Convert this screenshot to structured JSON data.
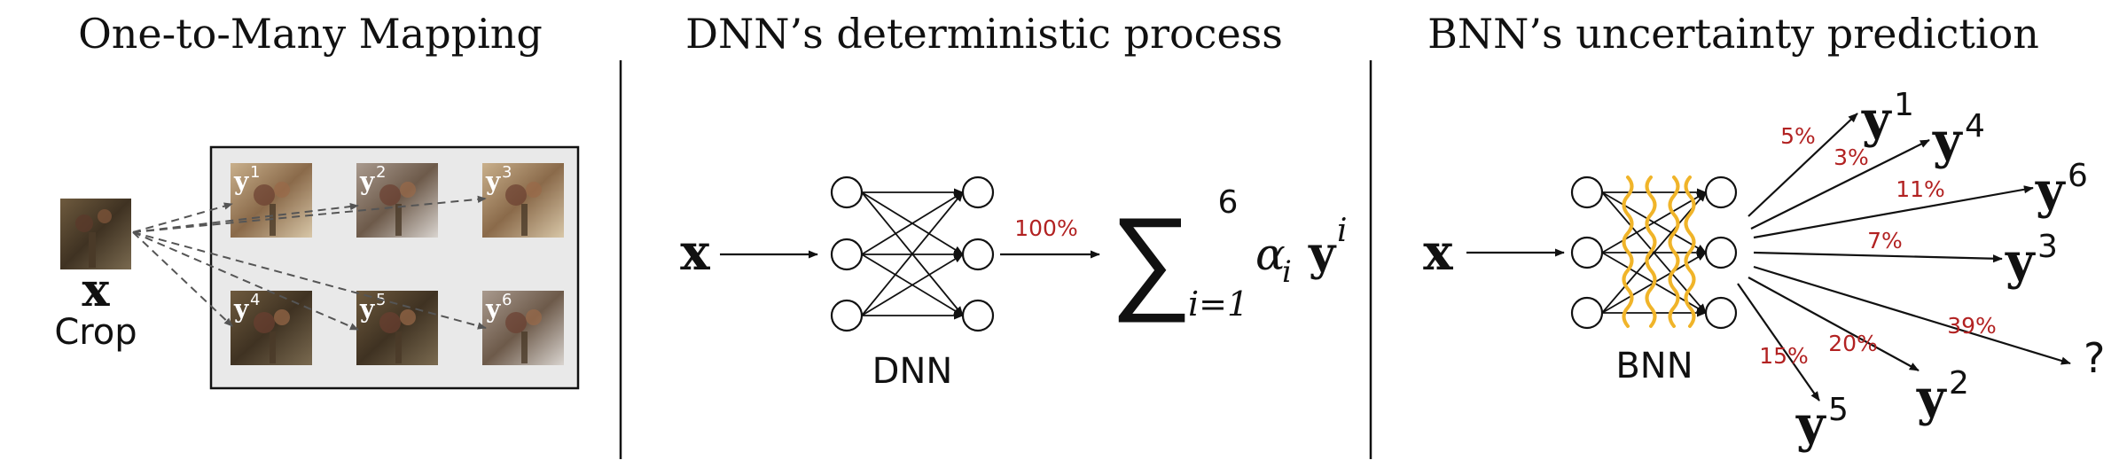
{
  "colors": {
    "percent_label": "#b22222",
    "uncertainty_wiggle": "#f0b429",
    "panel_bg": "#e9e9e9"
  },
  "panel1": {
    "title": "One-to-Many Mapping",
    "input_symbol": "x",
    "input_caption": "Crop",
    "outputs": [
      {
        "base": "y",
        "sup": "1"
      },
      {
        "base": "y",
        "sup": "2"
      },
      {
        "base": "y",
        "sup": "3"
      },
      {
        "base": "y",
        "sup": "4"
      },
      {
        "base": "y",
        "sup": "5"
      },
      {
        "base": "y",
        "sup": "6"
      }
    ]
  },
  "panel2": {
    "title": "DNN’s deterministic process",
    "input_symbol": "x",
    "network_label": "DNN",
    "confidence": "100%",
    "sum_symbol": "∑",
    "sum_lower": "i=1",
    "sum_upper": "6",
    "sum_term_alpha": "α",
    "sum_term_alpha_sub": "i",
    "sum_term_y": "y",
    "sum_term_y_sup": "i"
  },
  "panel3": {
    "title": "BNN’s uncertainty prediction",
    "input_symbol": "x",
    "network_label": "BNN",
    "predictions": [
      {
        "base": "y",
        "sup": "1",
        "percent": "5%"
      },
      {
        "base": "y",
        "sup": "4",
        "percent": "3%"
      },
      {
        "base": "y",
        "sup": "6",
        "percent": "11%"
      },
      {
        "base": "y",
        "sup": "3",
        "percent": "7%"
      },
      {
        "base": "?",
        "sup": "",
        "percent": "39%"
      },
      {
        "base": "y",
        "sup": "2",
        "percent": "20%"
      },
      {
        "base": "y",
        "sup": "5",
        "percent": "15%"
      }
    ]
  }
}
